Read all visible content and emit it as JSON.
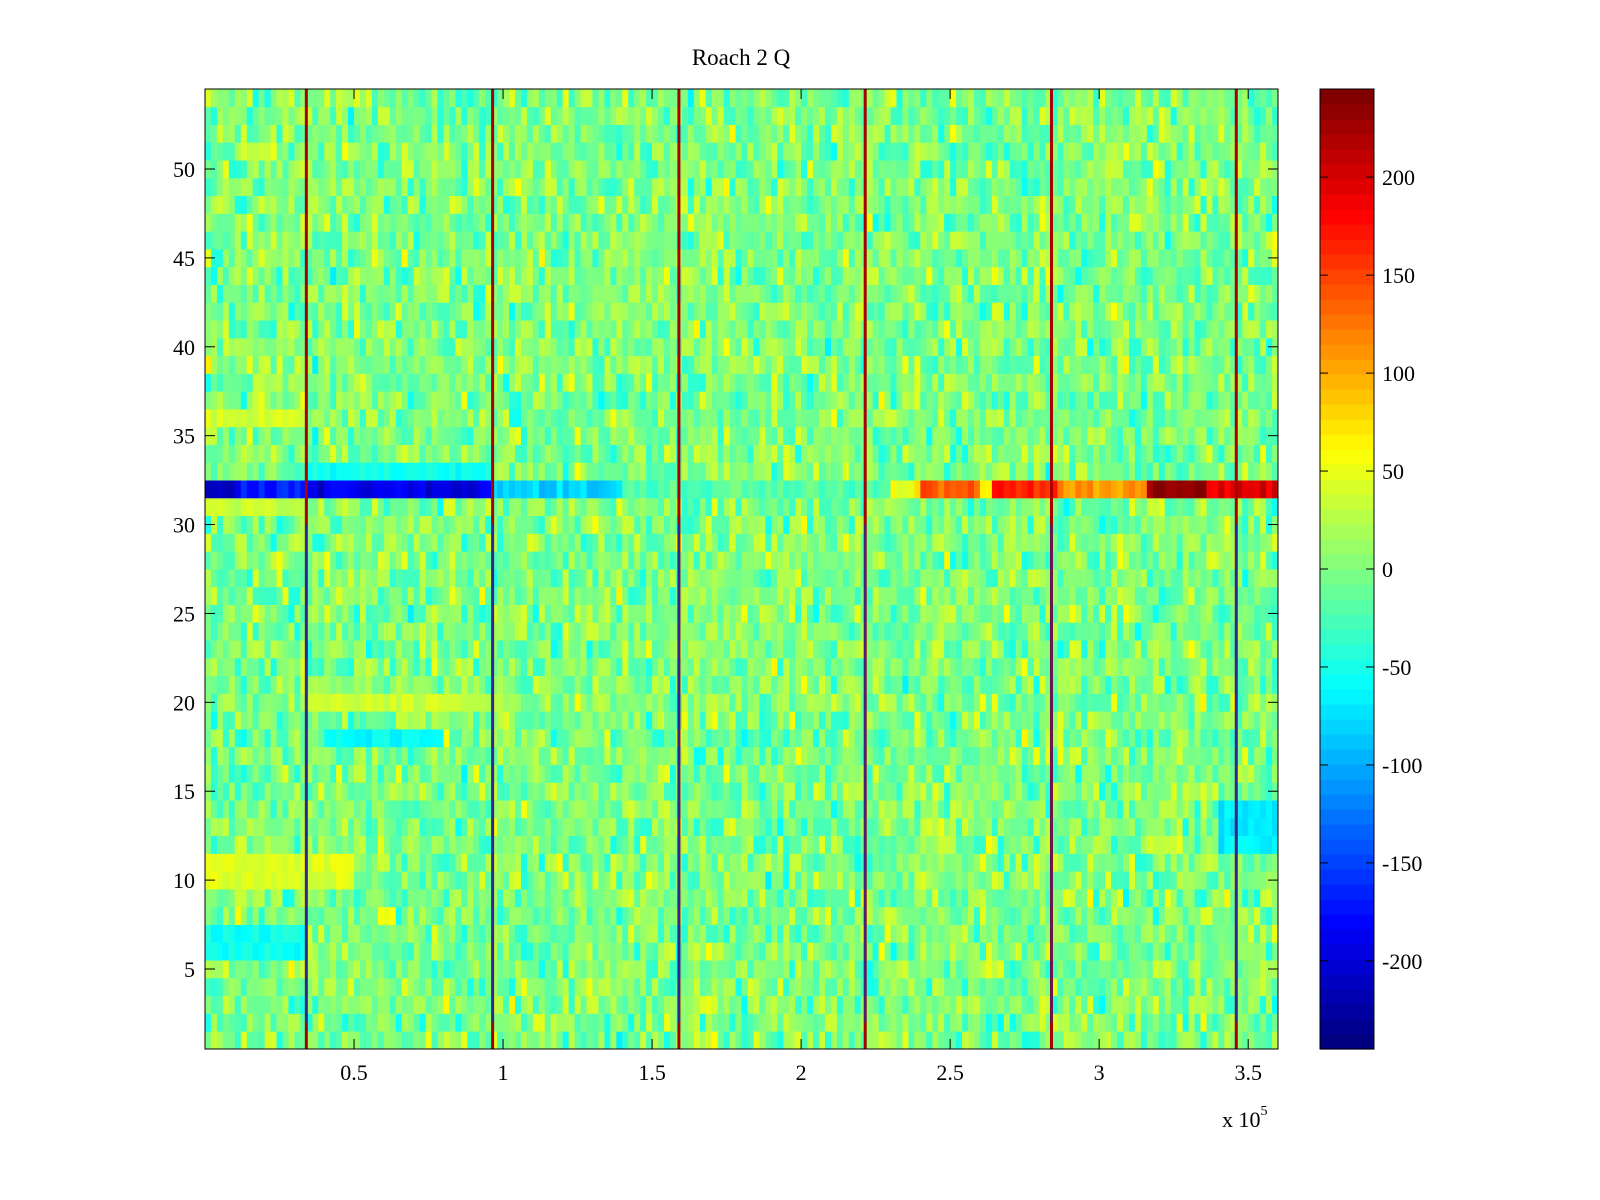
{
  "chart_data": {
    "type": "heatmap",
    "title": "Roach 2 Q",
    "xlabel": "",
    "ylabel": "",
    "x_multiplier_label": "x 10",
    "x_multiplier_exponent": "5",
    "xlim": [
      0,
      3.6
    ],
    "ylim": [
      0.5,
      54.5
    ],
    "xticks": [
      0.5,
      1,
      1.5,
      2,
      2.5,
      3,
      3.5
    ],
    "xtick_labels": [
      "0.5",
      "1",
      "1.5",
      "2",
      "2.5",
      "3",
      "3.5"
    ],
    "yticks": [
      5,
      10,
      15,
      20,
      25,
      30,
      35,
      40,
      45,
      50
    ],
    "ytick_labels": [
      "5",
      "10",
      "15",
      "20",
      "25",
      "30",
      "35",
      "40",
      "45",
      "50"
    ],
    "rows": 54,
    "colormap": "jet",
    "clim": [
      -245,
      245
    ],
    "colorbar_ticks": [
      200,
      150,
      100,
      50,
      0,
      -50,
      -100,
      -150,
      -200
    ],
    "colorbar_labels": [
      "200",
      "150",
      "100",
      "50",
      "0",
      "-50",
      "-100",
      "-150",
      "-200"
    ],
    "background_noise": {
      "mean": 0,
      "spread": 35
    },
    "boundary_lines_x": [
      0.34,
      0.965,
      1.59,
      2.215,
      2.84,
      3.46
    ],
    "anomalous_row": {
      "row": 32,
      "segments": [
        {
          "x_start": 0.0,
          "x_end": 0.1,
          "value": -230
        },
        {
          "x_start": 0.1,
          "x_end": 0.34,
          "value": -175
        },
        {
          "x_start": 0.34,
          "x_end": 0.965,
          "value": -200
        },
        {
          "x_start": 0.965,
          "x_end": 1.4,
          "value": -80
        },
        {
          "x_start": 1.4,
          "x_end": 2.3,
          "value": -20
        },
        {
          "x_start": 2.3,
          "x_end": 2.4,
          "value": 60
        },
        {
          "x_start": 2.4,
          "x_end": 2.6,
          "value": 140
        },
        {
          "x_start": 2.6,
          "x_end": 2.65,
          "value": 50
        },
        {
          "x_start": 2.65,
          "x_end": 2.85,
          "value": 170
        },
        {
          "x_start": 2.85,
          "x_end": 3.17,
          "value": 110
        },
        {
          "x_start": 3.17,
          "x_end": 3.35,
          "value": 240
        },
        {
          "x_start": 3.35,
          "x_end": 3.6,
          "value": 200
        }
      ]
    },
    "warm_bands": [
      {
        "row_start": 10,
        "row_end": 11,
        "x_start": 0.0,
        "x_end": 0.5,
        "value": 45
      },
      {
        "row_start": 20,
        "row_end": 20,
        "x_start": 0.34,
        "x_end": 1.0,
        "value": 35
      },
      {
        "row_start": 31,
        "row_end": 31,
        "x_start": 0.0,
        "x_end": 0.34,
        "value": 35
      },
      {
        "row_start": 36,
        "row_end": 36,
        "x_start": 0.0,
        "x_end": 0.34,
        "value": 40
      }
    ],
    "cool_bands": [
      {
        "row_start": 6,
        "row_end": 7,
        "x_start": 0.0,
        "x_end": 0.34,
        "value": -55
      },
      {
        "row_start": 18,
        "row_end": 18,
        "x_start": 0.4,
        "x_end": 0.8,
        "value": -60
      },
      {
        "row_start": 33,
        "row_end": 33,
        "x_start": 0.34,
        "x_end": 0.965,
        "value": -55
      },
      {
        "row_start": 12,
        "row_end": 14,
        "x_start": 3.4,
        "x_end": 3.6,
        "value": -70
      }
    ]
  }
}
